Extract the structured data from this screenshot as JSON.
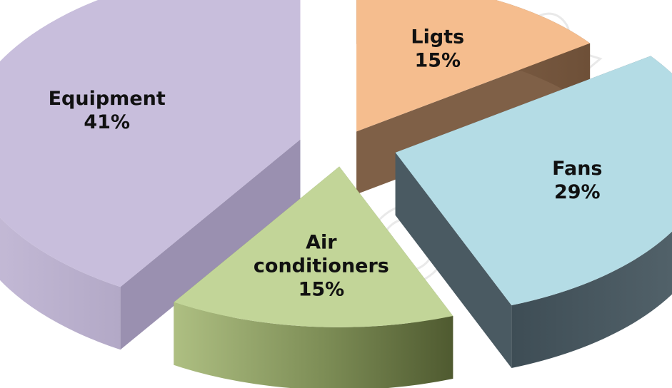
{
  "chart_data": {
    "type": "pie",
    "variant": "3d-exploded",
    "categories": [
      "Ligts",
      "Fans",
      "Air conditioners",
      "Equipment"
    ],
    "values": [
      15,
      29,
      15,
      41
    ],
    "value_labels": [
      "15%",
      "29%",
      "15%",
      "41%"
    ],
    "label_lines": [
      [
        "Ligts",
        "15%"
      ],
      [
        "Fans",
        "29%"
      ],
      [
        "Air",
        "conditioners",
        "15%"
      ],
      [
        "Equipment",
        "41%"
      ]
    ],
    "colors": {
      "top": [
        "#f5bd8e",
        "#b4dce5",
        "#c2d598",
        "#c8bedc"
      ],
      "side": [
        "#7f6047",
        "#4a5a62",
        "#6a7a48",
        "#9a90b0"
      ]
    },
    "legend": "none"
  }
}
